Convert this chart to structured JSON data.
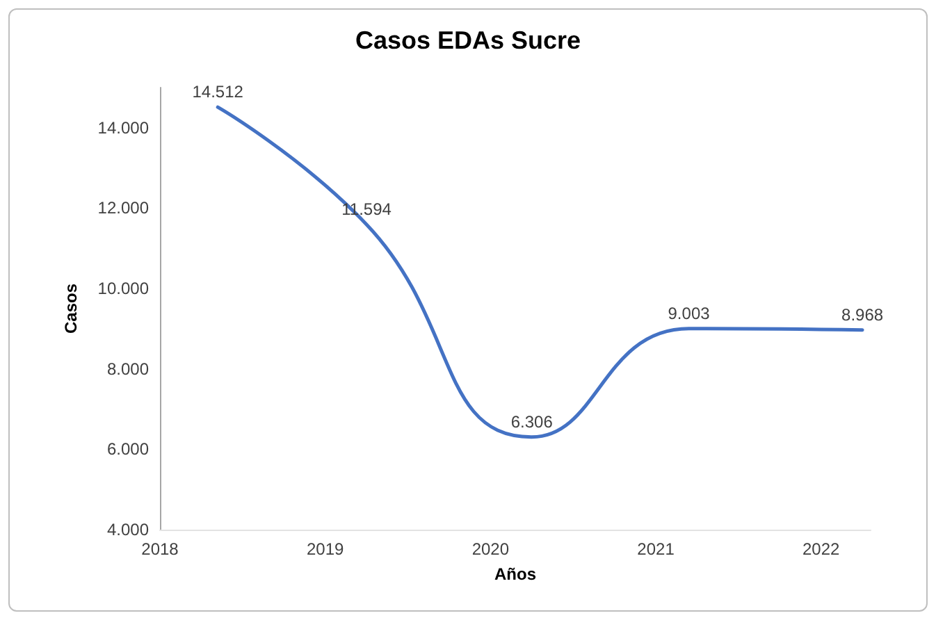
{
  "chart_data": {
    "type": "line",
    "title": "Casos EDAs Sucre",
    "xlabel": "Años",
    "ylabel": "Casos",
    "x": [
      2018.35,
      2019.25,
      2020.25,
      2021.2,
      2022.25
    ],
    "series": [
      {
        "color": "#4472c4",
        "values": [
          14512,
          11594,
          6306,
          9003,
          8968
        ],
        "value_labels": [
          "14.512",
          "11.594",
          "6.306",
          "9.003",
          "8.968"
        ]
      }
    ],
    "xlim": [
      2018,
      2022.3
    ],
    "xticks": [
      2018,
      2019,
      2020,
      2021,
      2022
    ],
    "ylim": [
      4000,
      15000
    ],
    "yticks": [
      {
        "value": 4000,
        "label": "4.000"
      },
      {
        "value": 6000,
        "label": "6.000"
      },
      {
        "value": 8000,
        "label": "8.000"
      },
      {
        "value": 10000,
        "label": "10.000"
      },
      {
        "value": 12000,
        "label": "12.000"
      },
      {
        "value": 14000,
        "label": "14.000"
      }
    ],
    "grid": false,
    "marker": "none",
    "line_style": "solid"
  }
}
